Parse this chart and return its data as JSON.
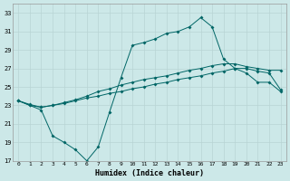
{
  "xlabel": "Humidex (Indice chaleur)",
  "bg_color": "#cce8e8",
  "grid_color": "#b8d4d4",
  "line_color": "#006666",
  "xlim": [
    -0.5,
    23.5
  ],
  "ylim": [
    17,
    34
  ],
  "xticks": [
    0,
    1,
    2,
    3,
    4,
    5,
    6,
    7,
    8,
    9,
    10,
    11,
    12,
    13,
    14,
    15,
    16,
    17,
    18,
    19,
    20,
    21,
    22,
    23
  ],
  "yticks": [
    17,
    19,
    21,
    23,
    25,
    27,
    29,
    31,
    33
  ],
  "line1_x": [
    0,
    1,
    2,
    3,
    4,
    5,
    6,
    7,
    8,
    9,
    10,
    11,
    12,
    13,
    14,
    15,
    16,
    17,
    18,
    19,
    20,
    21,
    22,
    23
  ],
  "line1_y": [
    23.5,
    23.0,
    22.8,
    23.0,
    23.2,
    23.5,
    23.8,
    24.0,
    24.3,
    24.5,
    24.8,
    25.0,
    25.3,
    25.5,
    25.8,
    26.0,
    26.2,
    26.5,
    26.7,
    27.0,
    27.0,
    26.7,
    26.5,
    24.7
  ],
  "line2_x": [
    0,
    1,
    2,
    3,
    4,
    5,
    6,
    7,
    8,
    9,
    10,
    11,
    12,
    13,
    14,
    15,
    16,
    17,
    18,
    19,
    20,
    21,
    22,
    23
  ],
  "line2_y": [
    23.5,
    23.1,
    22.8,
    23.0,
    23.3,
    23.6,
    24.0,
    24.5,
    24.8,
    25.2,
    25.5,
    25.8,
    26.0,
    26.2,
    26.5,
    26.8,
    27.0,
    27.3,
    27.5,
    27.5,
    27.2,
    27.0,
    26.8,
    26.8
  ],
  "line3_x": [
    0,
    1,
    2,
    3,
    4,
    5,
    6,
    7,
    8,
    9,
    10,
    11,
    12,
    13,
    14,
    15,
    16,
    17,
    18,
    19,
    20,
    21,
    22,
    23
  ],
  "line3_y": [
    23.5,
    23.0,
    22.5,
    19.7,
    19.0,
    18.2,
    17.0,
    18.5,
    22.3,
    26.0,
    29.5,
    29.8,
    30.2,
    30.8,
    31.0,
    31.5,
    32.5,
    31.5,
    28.0,
    27.0,
    26.5,
    25.5,
    25.5,
    24.5
  ],
  "marker_size": 2.0,
  "linewidth": 0.7
}
